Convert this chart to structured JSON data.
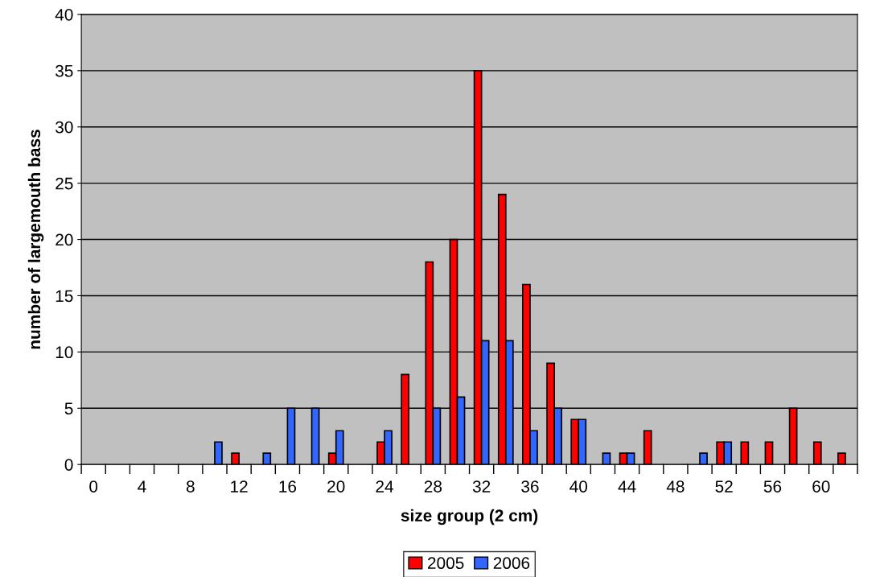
{
  "chart_data": {
    "type": "bar",
    "xlabel": "size group (2 cm)",
    "ylabel": "number of largemouth bass",
    "categories": [
      "0",
      null,
      "4",
      null,
      "8",
      null,
      "12",
      null,
      "16",
      null,
      "20",
      null,
      "24",
      null,
      "28",
      null,
      "32",
      null,
      "36",
      null,
      "40",
      null,
      "44",
      null,
      "48",
      null,
      "52",
      null,
      "56",
      null,
      "60",
      null
    ],
    "series": [
      {
        "name": "2005",
        "color": "#ff0000",
        "values": [
          0,
          0,
          0,
          0,
          0,
          0,
          1,
          0,
          0,
          0,
          1,
          0,
          2,
          8,
          18,
          20,
          35,
          24,
          16,
          9,
          4,
          0,
          1,
          3,
          0,
          0,
          2,
          2,
          2,
          5,
          2,
          1
        ]
      },
      {
        "name": "2006",
        "color": "#3366ff",
        "values": [
          0,
          0,
          0,
          0,
          0,
          2,
          0,
          1,
          5,
          5,
          3,
          0,
          3,
          0,
          5,
          6,
          11,
          11,
          3,
          5,
          4,
          1,
          1,
          0,
          0,
          1,
          2,
          0,
          0,
          0,
          0,
          0
        ]
      }
    ],
    "ylim": [
      0,
      40
    ],
    "yticks": [
      0,
      5,
      10,
      15,
      20,
      25,
      30,
      35,
      40
    ],
    "grid": "y",
    "legend": "bottom"
  }
}
